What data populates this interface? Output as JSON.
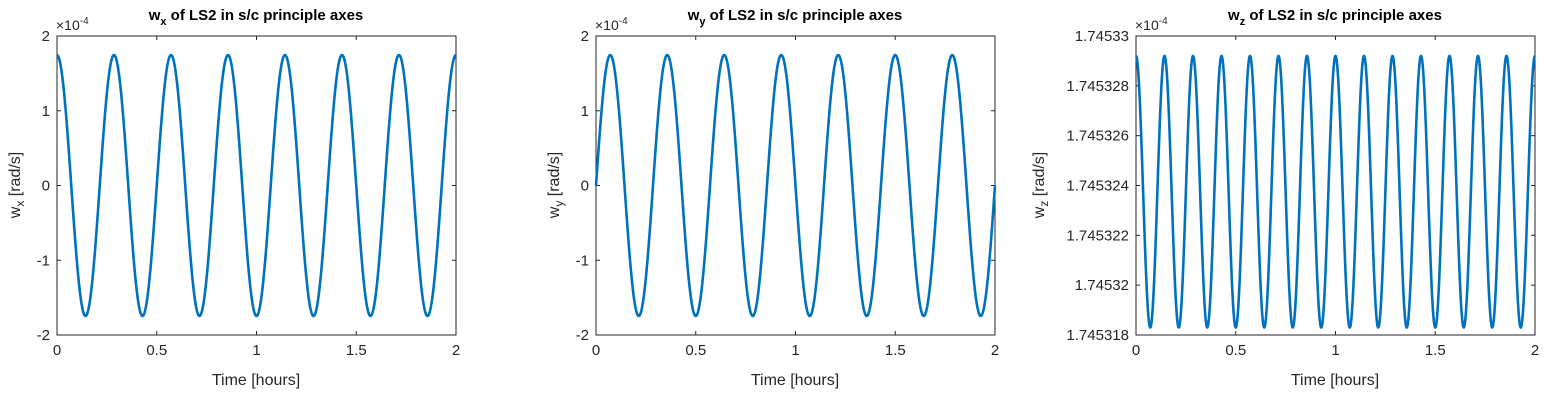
{
  "colors": {
    "series": "#0072BD",
    "axes": "#262626",
    "background": "#ffffff"
  },
  "chart_data": [
    {
      "type": "line",
      "title": "w",
      "title_sub": "x",
      "title_rest": " of LS2 in s/c principle axes",
      "xlabel": "Time [hours]",
      "ylabel": "w",
      "ylabel_sub": "x",
      "ylabel_rest": " [rad/s]",
      "multiplier": "×10",
      "multiplier_exp": "-4",
      "xlim": [
        0,
        2
      ],
      "ylim": [
        -2,
        2
      ],
      "xticks": [
        0,
        0.5,
        1,
        1.5,
        2
      ],
      "xtick_labels": [
        "0",
        "0.5",
        "1",
        "1.5",
        "2"
      ],
      "yticks": [
        -2,
        -1,
        0,
        1,
        2
      ],
      "ytick_labels": [
        "-2",
        "-1",
        "0",
        "1",
        "2"
      ],
      "grid": false,
      "series": [
        {
          "function": "cosine",
          "amplitude": 1.745,
          "offset": 0,
          "period_hours": 0.2857,
          "phase_deg": 0,
          "t_start": 0,
          "t_end": 2
        }
      ]
    },
    {
      "type": "line",
      "title": "w",
      "title_sub": "y",
      "title_rest": " of LS2 in s/c principle axes",
      "xlabel": "Time [hours]",
      "ylabel": "w",
      "ylabel_sub": "y",
      "ylabel_rest": " [rad/s]",
      "multiplier": "×10",
      "multiplier_exp": "-4",
      "xlim": [
        0,
        2
      ],
      "ylim": [
        -2,
        2
      ],
      "xticks": [
        0,
        0.5,
        1,
        1.5,
        2
      ],
      "xtick_labels": [
        "0",
        "0.5",
        "1",
        "1.5",
        "2"
      ],
      "yticks": [
        -2,
        -1,
        0,
        1,
        2
      ],
      "ytick_labels": [
        "-2",
        "-1",
        "0",
        "1",
        "2"
      ],
      "grid": false,
      "series": [
        {
          "function": "sine",
          "amplitude": 1.745,
          "offset": 0,
          "period_hours": 0.2857,
          "phase_deg": 0,
          "t_start": 0,
          "t_end": 2
        }
      ]
    },
    {
      "type": "line",
      "title": "w",
      "title_sub": "z",
      "title_rest": " of LS2 in s/c principle axes",
      "xlabel": "Time [hours]",
      "ylabel": "w",
      "ylabel_sub": "z",
      "ylabel_rest": " [rad/s]",
      "multiplier": "×10",
      "multiplier_exp": "-4",
      "xlim": [
        0,
        2
      ],
      "ylim": [
        1.745318,
        1.74533
      ],
      "xticks": [
        0,
        0.5,
        1,
        1.5,
        2
      ],
      "xtick_labels": [
        "0",
        "0.5",
        "1",
        "1.5",
        "2"
      ],
      "yticks": [
        1.745318,
        1.74532,
        1.745322,
        1.745324,
        1.745326,
        1.745328,
        1.74533
      ],
      "ytick_labels": [
        "1.745318",
        "1.74532",
        "1.745322",
        "1.745324",
        "1.745326",
        "1.745328",
        "1.74533"
      ],
      "grid": false,
      "series": [
        {
          "function": "cosine",
          "amplitude": 5.45e-06,
          "offset": 1.74532375,
          "period_hours": 0.14286,
          "phase_deg": 0,
          "t_start": 0,
          "t_end": 2
        }
      ]
    }
  ]
}
